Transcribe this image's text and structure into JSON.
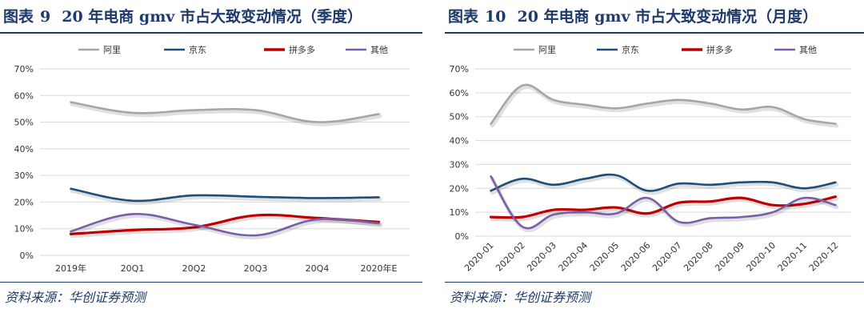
{
  "chart_data": [
    {
      "type": "line",
      "fig_label": "图表",
      "fig_number": "9",
      "title": "20 年电商 gmv 市占大致变动情况（季度）",
      "categories": [
        "2019年",
        "20Q1",
        "20Q2",
        "20Q3",
        "20Q4",
        "2020年E"
      ],
      "ylim": [
        0,
        70
      ],
      "yticks": [
        "0%",
        "10%",
        "20%",
        "30%",
        "40%",
        "50%",
        "60%",
        "70%"
      ],
      "grid": true,
      "legend_position": "top",
      "series": [
        {
          "name": "阿里",
          "color": "#a6a6a6",
          "values": [
            57.5,
            53.5,
            54.5,
            54.5,
            50,
            53
          ]
        },
        {
          "name": "京东",
          "color": "#1f4e79",
          "values": [
            25,
            20.5,
            22.5,
            22,
            21.5,
            21.8
          ]
        },
        {
          "name": "拼多多",
          "color": "#c00000",
          "values": [
            8,
            9.5,
            10.5,
            15,
            14,
            12.5
          ]
        },
        {
          "name": "其他",
          "color": "#7a5fa8",
          "values": [
            9,
            15.5,
            11.5,
            7.5,
            13.5,
            12
          ]
        }
      ]
    },
    {
      "type": "line",
      "fig_label": "图表",
      "fig_number": "10",
      "title": "20 年电商 gmv 市占大致变动情况（月度）",
      "categories": [
        "2020-01",
        "2020-02",
        "2020-03",
        "2020-04",
        "2020-05",
        "2020-06",
        "2020-07",
        "2020-08",
        "2020-09",
        "2020-10",
        "2020-11",
        "2020-12"
      ],
      "ylim": [
        0,
        70
      ],
      "yticks": [
        "0%",
        "10%",
        "20%",
        "30%",
        "40%",
        "50%",
        "60%",
        "70%"
      ],
      "grid": true,
      "legend_position": "top",
      "series": [
        {
          "name": "阿里",
          "color": "#a6a6a6",
          "values": [
            47,
            63,
            57,
            55,
            53.5,
            55.5,
            57,
            55.5,
            53,
            54,
            49,
            47
          ]
        },
        {
          "name": "京东",
          "color": "#1f4e79",
          "values": [
            19,
            24,
            21.5,
            24,
            25.5,
            19,
            22,
            21.5,
            22.5,
            22.5,
            20,
            22.5
          ]
        },
        {
          "name": "拼多多",
          "color": "#c00000",
          "values": [
            8,
            8,
            11,
            11,
            12,
            9.5,
            14,
            14.5,
            16,
            13,
            13.5,
            16.5
          ]
        },
        {
          "name": "其他",
          "color": "#7a5fa8",
          "values": [
            25,
            4,
            9,
            10,
            9.5,
            16,
            6,
            7.5,
            8,
            10,
            16,
            13
          ]
        }
      ]
    }
  ],
  "source_text": "资料来源：华创证券预测"
}
